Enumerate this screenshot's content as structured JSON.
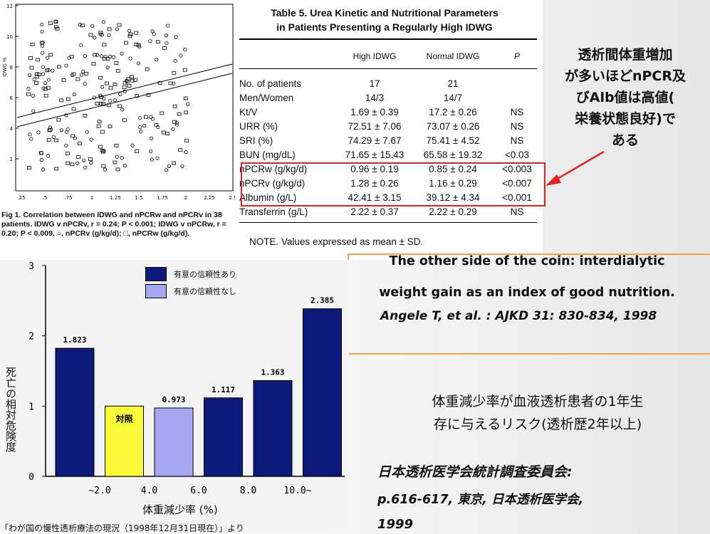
{
  "scatter": {
    "y_ticks": [
      "12",
      "10",
      "8",
      "6",
      "4",
      "2"
    ],
    "y_label": "IDWG %",
    "x_ticks": [
      ".25",
      ".5",
      ".75",
      "1",
      "1.25",
      "1.5",
      "1.75",
      "2",
      "2.25",
      "2.5"
    ],
    "caption": "Fig 1.  Correlation between IDWG and nPCRw and nPCRv in 38 patients. IDWG v nPCRv, r = 0.24; P < 0.001; IDWG v nPCRw, r = 0.20; P < 0.009. ○, nPCRv (g/kg/d); □, nPCRw (g/kg/d)."
  },
  "table": {
    "title_line1": "Table 5.  Urea Kinetic and Nutritional Parameters",
    "title_line2": "in Patients Presenting a Regularly High IDWG",
    "headers": [
      "High IDWG",
      "Normal IDWG",
      "P"
    ],
    "rows": [
      {
        "label": "No. of patients",
        "high": "17",
        "normal": "21",
        "p": ""
      },
      {
        "label": "Men/Women",
        "high": "14/3",
        "normal": "14/7",
        "p": ""
      },
      {
        "label": "Kt/V",
        "high": "1.69 ± 0.39",
        "normal": "17.2 ± 0.26",
        "p": "NS"
      },
      {
        "label": "URR (%)",
        "high": "72.51 ± 7.06",
        "normal": "73.07 ± 0.26",
        "p": "NS"
      },
      {
        "label": "SRI (%)",
        "high": "74.29 ± 7.67",
        "normal": "75.41 ± 4.52",
        "p": "NS"
      },
      {
        "label": "BUN (mg/dL)",
        "high": "71.65 ± 15.43",
        "normal": "65.58 ± 19.32",
        "p": "<0.03"
      },
      {
        "label": "nPCRw (g/kg/d)",
        "high": "0.96 ± 0.19",
        "normal": "0.85 ± 0.24",
        "p": "<0.003"
      },
      {
        "label": "nPCRv (g/kg/d)",
        "high": "1.28 ± 0.26",
        "normal": "1.16 ± 0.29",
        "p": "<0.007"
      },
      {
        "label": "Albumin (g/L)",
        "high": "42.41 ± 3.15",
        "normal": "39.12 ± 4.34",
        "p": "<0.001"
      },
      {
        "label": "Transferrin (g/L)",
        "high": "2.22 ± 0.37",
        "normal": "2.22 ± 0.29",
        "p": "NS"
      }
    ],
    "note": "NOTE. Values expressed as mean ± SD.",
    "highlight_color": "#e52222"
  },
  "notes": {
    "jp_top": [
      "透析間体重増加",
      "が多いほどnPCR及",
      "びAlb値は高値(",
      "栄養状態良好)で",
      "ある"
    ],
    "en_title_1": "The other side of the coin: interdialytic",
    "en_title_2": "weight gain as an index of good nutrition.",
    "en_ref": "Angele T, et al. : AJKD 31: 830-834, 1998",
    "jp_mid_1": "体重減少率が血液透析患者の1年生",
    "jp_mid_2": "存に与えるリスク(透析歴2年以上)",
    "jp_ref_1": "日本透析医学会統計調査委員会:",
    "jp_ref_2": "p.616-617,  東京, 日本透析医学会,",
    "jp_ref_3": "1999"
  },
  "chart_data": {
    "type": "bar",
    "ylabel": "死亡の相対危険度",
    "xlabel": "体重減少率 (%)",
    "y_ticks": [
      "0",
      "1",
      "2",
      "3"
    ],
    "ylim": [
      0,
      3
    ],
    "x_tick_labels": [
      "~2.0",
      "4.0",
      "6.0",
      "8.0",
      "10.0~"
    ],
    "values": [
      1.823,
      1.0,
      0.973,
      1.117,
      1.363,
      2.385
    ],
    "value_labels": [
      "1.823",
      "",
      "0.973",
      "1.117",
      "1.363",
      "2.385"
    ],
    "bar_labels": [
      "",
      "対照",
      "",
      "",
      "",
      ""
    ],
    "legend": [
      {
        "label": "有意の信頼性あり",
        "color": "#0c1a7c"
      },
      {
        "label": "有意の信頼性なし",
        "color": "#a7a7f3"
      }
    ],
    "colors": [
      "#0c1a7c",
      "#fafa36",
      "#a7a7f3",
      "#0c1a7c",
      "#0c1a7c",
      "#0c1a7c"
    ],
    "source": "「わが国の慢性透析療法の現況（1998年12月31日現在）」より"
  },
  "accent": {
    "arrow": "#e52222",
    "divider": "#f0a050"
  }
}
